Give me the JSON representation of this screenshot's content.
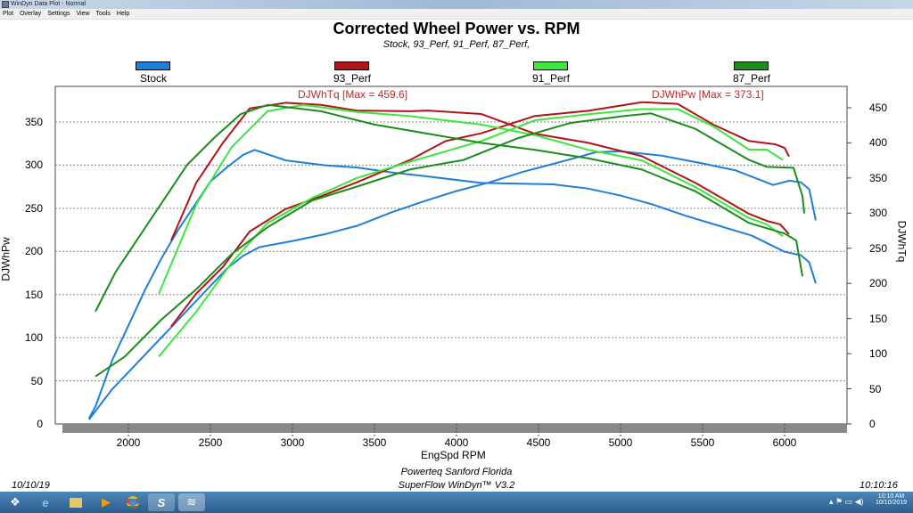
{
  "window": {
    "title": "WinDyn Data Plot - Normal",
    "menu": [
      "Plot",
      "Overlay",
      "Settings",
      "View",
      "Tools",
      "Help"
    ]
  },
  "colors": {
    "stock": "#1f7fd8",
    "perf93": "#b01418",
    "perf91": "#3ce63c",
    "perf87": "#1c8c1c",
    "annotation": "#c0282a"
  },
  "footer": {
    "line1": "Powerteq Sanford Florida",
    "line2": "SuperFlow WinDyn™ V3.2",
    "date": "10/10/19",
    "time": "10:10:16"
  },
  "taskbar": {
    "clock_time": "10:10 AM",
    "clock_date": "10/10/2019"
  },
  "chart_data": {
    "type": "line",
    "title": "Corrected Wheel Power vs. RPM",
    "subtitle": "Stock, 93_Perf, 91_Perf, 87_Perf,",
    "xlabel": "EngSpd RPM",
    "ylabel": "DJWhPw",
    "y2label": "DJWhTq",
    "xlim": [
      1550,
      6380
    ],
    "ylim": [
      0,
      390
    ],
    "y2lim": [
      0,
      490
    ],
    "xticks": [
      2000,
      2500,
      3000,
      3500,
      4000,
      4500,
      5000,
      5500,
      6000
    ],
    "yticks": [
      0,
      50,
      100,
      150,
      200,
      250,
      300,
      350
    ],
    "y2ticks": [
      0,
      50,
      100,
      150,
      200,
      250,
      300,
      350,
      400,
      450
    ],
    "grid": "horizontal dashed",
    "legend": "top",
    "annotations": [
      "DJWhTq [Max = 459.6]",
      "DJWhPw [Max = 373.1]"
    ],
    "series": [
      {
        "name": "Stock",
        "color": "stock",
        "power": [
          [
            1760,
            5
          ],
          [
            1900,
            40
          ],
          [
            2000,
            60
          ],
          [
            2100,
            80
          ],
          [
            2200,
            100
          ],
          [
            2300,
            120
          ],
          [
            2400,
            140
          ],
          [
            2500,
            160
          ],
          [
            2600,
            180
          ],
          [
            2700,
            195
          ],
          [
            2800,
            205
          ],
          [
            3000,
            212
          ],
          [
            3200,
            220
          ],
          [
            3400,
            230
          ],
          [
            3600,
            245
          ],
          [
            3800,
            258
          ],
          [
            4000,
            270
          ],
          [
            4200,
            280
          ],
          [
            4400,
            292
          ],
          [
            4600,
            302
          ],
          [
            4850,
            315
          ],
          [
            5000,
            316
          ],
          [
            5250,
            311
          ],
          [
            5500,
            302
          ],
          [
            5700,
            294
          ],
          [
            5930,
            277
          ],
          [
            6030,
            282
          ],
          [
            6100,
            280
          ],
          [
            6150,
            272
          ],
          [
            6190,
            236
          ]
        ],
        "torque": [
          [
            1760,
            8
          ],
          [
            1800,
            25
          ],
          [
            1900,
            90
          ],
          [
            2000,
            140
          ],
          [
            2100,
            190
          ],
          [
            2200,
            235
          ],
          [
            2300,
            275
          ],
          [
            2400,
            310
          ],
          [
            2500,
            345
          ],
          [
            2600,
            365
          ],
          [
            2700,
            383
          ],
          [
            2770,
            390
          ],
          [
            2960,
            375
          ],
          [
            3200,
            368
          ],
          [
            3390,
            365
          ],
          [
            3600,
            358
          ],
          [
            3830,
            352
          ],
          [
            4150,
            343
          ],
          [
            4590,
            341
          ],
          [
            4800,
            335
          ],
          [
            5000,
            325
          ],
          [
            5200,
            312
          ],
          [
            5400,
            296
          ],
          [
            5600,
            282
          ],
          [
            5800,
            268
          ],
          [
            6000,
            245
          ],
          [
            6100,
            240
          ],
          [
            6150,
            230
          ],
          [
            6190,
            200
          ]
        ]
      },
      {
        "name": "93_Perf",
        "color": "perf93",
        "power": [
          [
            2261,
            113
          ],
          [
            2413,
            151
          ],
          [
            2576,
            182
          ],
          [
            2739,
            223
          ],
          [
            2957,
            249
          ],
          [
            3174,
            264
          ],
          [
            3391,
            280
          ],
          [
            3717,
            306
          ],
          [
            3935,
            328
          ],
          [
            4152,
            337
          ],
          [
            4478,
            357
          ],
          [
            4804,
            363
          ],
          [
            5130,
            373
          ],
          [
            5348,
            371
          ],
          [
            5565,
            347
          ],
          [
            5783,
            328
          ],
          [
            5946,
            324
          ],
          [
            6000,
            320
          ],
          [
            6027,
            310
          ]
        ],
        "torque": [
          [
            2261,
            261
          ],
          [
            2413,
            343
          ],
          [
            2576,
            400
          ],
          [
            2739,
            449
          ],
          [
            2957,
            457
          ],
          [
            3174,
            454
          ],
          [
            3391,
            446
          ],
          [
            3717,
            445
          ],
          [
            3826,
            446
          ],
          [
            4152,
            441
          ],
          [
            4478,
            413
          ],
          [
            4804,
            400
          ],
          [
            5130,
            381
          ],
          [
            5457,
            343
          ],
          [
            5783,
            299
          ],
          [
            5891,
            289
          ],
          [
            5973,
            284
          ],
          [
            6027,
            270
          ]
        ]
      },
      {
        "name": "91_Perf",
        "color": "perf91",
        "power": [
          [
            2185,
            78
          ],
          [
            2413,
            130
          ],
          [
            2630,
            187
          ],
          [
            2848,
            233
          ],
          [
            3120,
            262
          ],
          [
            3391,
            285
          ],
          [
            3717,
            304
          ],
          [
            4152,
            328
          ],
          [
            4478,
            352
          ],
          [
            4804,
            359
          ],
          [
            5130,
            365
          ],
          [
            5348,
            365
          ],
          [
            5565,
            345
          ],
          [
            5783,
            318
          ],
          [
            5891,
            318
          ],
          [
            5989,
            306
          ]
        ],
        "torque": [
          [
            2185,
            185
          ],
          [
            2413,
            312
          ],
          [
            2630,
            394
          ],
          [
            2848,
            445
          ],
          [
            3065,
            454
          ],
          [
            3391,
            444
          ],
          [
            3717,
            438
          ],
          [
            4152,
            426
          ],
          [
            4478,
            411
          ],
          [
            4804,
            390
          ],
          [
            5130,
            375
          ],
          [
            5457,
            337
          ],
          [
            5783,
            293
          ],
          [
            5891,
            284
          ],
          [
            5989,
            267
          ]
        ]
      },
      {
        "name": "87_Perf",
        "color": "perf87",
        "power": [
          [
            1799,
            55
          ],
          [
            1978,
            78
          ],
          [
            2196,
            120
          ],
          [
            2413,
            156
          ],
          [
            2630,
            197
          ],
          [
            2848,
            228
          ],
          [
            3120,
            259
          ],
          [
            3391,
            275
          ],
          [
            3717,
            295
          ],
          [
            4043,
            306
          ],
          [
            4370,
            331
          ],
          [
            4696,
            349
          ],
          [
            5022,
            357
          ],
          [
            5185,
            360
          ],
          [
            5457,
            342
          ],
          [
            5783,
            306
          ],
          [
            5891,
            298
          ],
          [
            6054,
            297
          ],
          [
            6109,
            264
          ],
          [
            6120,
            244
          ]
        ],
        "torque": [
          [
            1799,
            160
          ],
          [
            1924,
            217
          ],
          [
            2033,
            255
          ],
          [
            2196,
            312
          ],
          [
            2359,
            369
          ],
          [
            2522,
            407
          ],
          [
            2685,
            441
          ],
          [
            2848,
            454
          ],
          [
            3174,
            445
          ],
          [
            3500,
            426
          ],
          [
            3826,
            413
          ],
          [
            4152,
            400
          ],
          [
            4478,
            390
          ],
          [
            4804,
            378
          ],
          [
            5130,
            362
          ],
          [
            5457,
            331
          ],
          [
            5783,
            286
          ],
          [
            6000,
            271
          ],
          [
            6071,
            261
          ],
          [
            6109,
            210
          ]
        ]
      }
    ]
  }
}
